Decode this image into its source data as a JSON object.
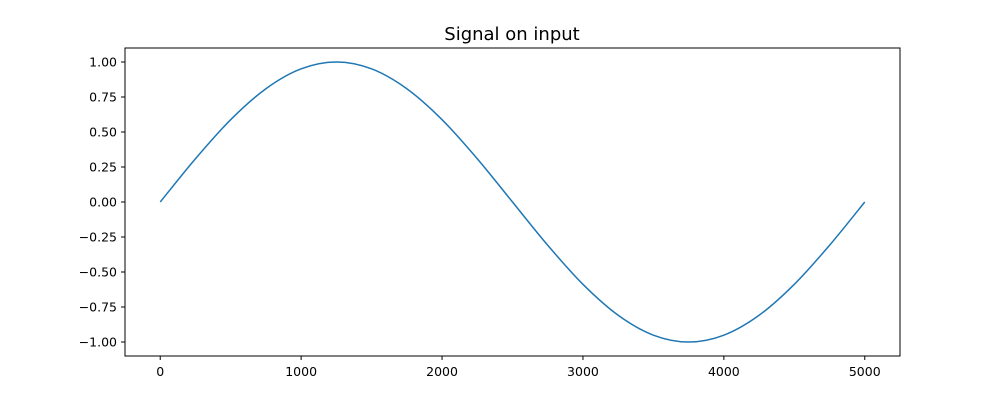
{
  "chart_data": {
    "type": "line",
    "title": "Signal on input",
    "xlabel": "",
    "ylabel": "",
    "xlim": [
      -250,
      5250
    ],
    "ylim": [
      -1.1,
      1.1
    ],
    "xticks": [
      0,
      1000,
      2000,
      3000,
      4000,
      5000
    ],
    "xtick_labels": [
      "0",
      "1000",
      "2000",
      "3000",
      "4000",
      "5000"
    ],
    "yticks": [
      1.0,
      0.75,
      0.5,
      0.25,
      0.0,
      -0.25,
      -0.5,
      -0.75,
      -1.0
    ],
    "ytick_labels": [
      "1.00",
      "0.75",
      "0.50",
      "0.25",
      "0.00",
      "−0.25",
      "−0.50",
      "−0.75",
      "−1.00"
    ],
    "grid": false,
    "legend": "none",
    "series": [
      {
        "color": "#1f77b4",
        "x": [
          0,
          250,
          500,
          750,
          1000,
          1250,
          1500,
          1750,
          2000,
          2250,
          2500,
          2750,
          3000,
          3250,
          3500,
          3750,
          4000,
          4250,
          4500,
          4750,
          5000
        ],
        "values": [
          0.0,
          0.309,
          0.588,
          0.809,
          0.951,
          1.0,
          0.951,
          0.809,
          0.588,
          0.309,
          0.0,
          -0.309,
          -0.588,
          -0.809,
          -0.951,
          -1.0,
          -0.951,
          -0.809,
          -0.588,
          -0.309,
          0.0
        ]
      }
    ]
  }
}
